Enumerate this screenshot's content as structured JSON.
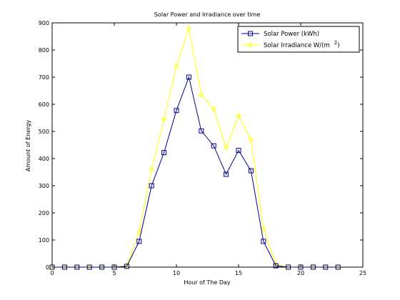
{
  "chart_data": {
    "type": "line",
    "title": "Solar Power and Irradiance over time",
    "xlabel": "Hour of The Day",
    "ylabel": "Amount of Energy",
    "xlim": [
      0,
      25
    ],
    "ylim": [
      0,
      900
    ],
    "x_ticks": [
      "0",
      "5",
      "10",
      "15",
      "20",
      "25"
    ],
    "y_ticks": [
      "0",
      "100",
      "200",
      "300",
      "400",
      "500",
      "600",
      "700",
      "800",
      "900"
    ],
    "grid": false,
    "legend_position": "top-right",
    "x": [
      0,
      1,
      2,
      3,
      4,
      5,
      6,
      7,
      8,
      9,
      10,
      11,
      12,
      13,
      14,
      15,
      16,
      17,
      18,
      19,
      20,
      21,
      22,
      23
    ],
    "series": [
      {
        "name": "Solar Power (kWh)",
        "color": "#00008B",
        "marker": "square",
        "values": [
          0,
          0,
          0,
          0,
          0,
          0,
          3,
          95,
          300,
          422,
          577,
          700,
          502,
          447,
          342,
          430,
          355,
          95,
          5,
          0,
          0,
          0,
          0,
          0
        ]
      },
      {
        "name": "Solar Irradiance W/(m",
        "name_superscript": "2",
        "name_suffix": ")",
        "color": "#FFFF00",
        "marker": "diamond",
        "values": [
          0,
          0,
          0,
          0,
          0,
          0,
          5,
          130,
          360,
          545,
          740,
          880,
          635,
          582,
          440,
          558,
          470,
          140,
          10,
          0,
          0,
          0,
          0,
          0
        ]
      }
    ]
  }
}
